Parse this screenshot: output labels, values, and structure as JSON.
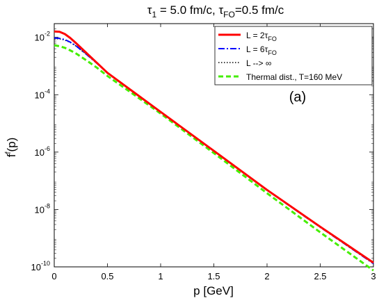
{
  "chart_data": {
    "type": "line",
    "title": {
      "main": "τ",
      "sub1": "1",
      "mid": " = 5.0 fm/c, τ",
      "sub2": "FO",
      "end": "=0.5 fm/c"
    },
    "xlabel": "p [GeV]",
    "ylabel": {
      "main": "f",
      "sup": "f",
      "end": "(p)"
    },
    "xlim": [
      0,
      3
    ],
    "ylim": [
      1e-10,
      0.03
    ],
    "yscale": "log",
    "xticks": [
      {
        "value": 0,
        "label": "0"
      },
      {
        "value": 0.5,
        "label": "0.5"
      },
      {
        "value": 1,
        "label": "1"
      },
      {
        "value": 1.5,
        "label": "1.5"
      },
      {
        "value": 2,
        "label": "2"
      },
      {
        "value": 2.5,
        "label": "2.5"
      },
      {
        "value": 3,
        "label": "3"
      }
    ],
    "yticks": [
      {
        "value": 0.01,
        "base": "10",
        "exp": "-2"
      },
      {
        "value": 0.0001,
        "base": "10",
        "exp": "-4"
      },
      {
        "value": 1e-06,
        "base": "10",
        "exp": "-6"
      },
      {
        "value": 1e-08,
        "base": "10",
        "exp": "-8"
      },
      {
        "value": 1e-10,
        "base": "10",
        "exp": "-10"
      }
    ],
    "panel_label": "(a)",
    "legend_position": "top-right",
    "series": [
      {
        "legend": {
          "text": "L = 2τ",
          "sub": "FO"
        },
        "color": "#ff0000",
        "dash": "solid",
        "x": [
          0,
          0.05,
          0.1,
          0.15,
          0.2,
          0.3,
          0.4,
          0.5,
          0.75,
          1.0,
          1.5,
          2.0,
          2.5,
          3.0
        ],
        "y": [
          0.016,
          0.0155,
          0.013,
          0.0095,
          0.0065,
          0.0029,
          0.0013,
          0.00058,
          0.00012,
          2.5e-05,
          1.1e-06,
          4.8e-08,
          2.5e-09,
          1.4e-10
        ]
      },
      {
        "legend": {
          "text": "L = 6τ",
          "sub": "FO"
        },
        "color": "#0000ff",
        "dash": "dashdot",
        "x": [
          0,
          0.05,
          0.1,
          0.15,
          0.2,
          0.3,
          0.4,
          0.5,
          0.75,
          1.0,
          1.5,
          2.0,
          2.5,
          3.0
        ],
        "y": [
          0.0095,
          0.0092,
          0.0083,
          0.0068,
          0.0052,
          0.0026,
          0.00125,
          0.00057,
          0.00012,
          2.5e-05,
          1.1e-06,
          4.7e-08,
          2.4e-09,
          1.3e-10
        ]
      },
      {
        "legend": {
          "text": "L --> ∞",
          "sub": ""
        },
        "color": "#000000",
        "dash": "dotted",
        "x": [
          0,
          0.05,
          0.1,
          0.15,
          0.2,
          0.3,
          0.4,
          0.5,
          0.75,
          1.0,
          1.5,
          2.0,
          2.5,
          3.0
        ],
        "y": [
          0.009,
          0.0088,
          0.008,
          0.0066,
          0.0051,
          0.0026,
          0.00124,
          0.00057,
          0.00012,
          2.5e-05,
          1.1e-06,
          4.7e-08,
          2.4e-09,
          1.3e-10
        ]
      },
      {
        "legend": {
          "text": "Thermal dist., T=160 MeV",
          "sub": ""
        },
        "color": "#44ee00",
        "dash": "dashed",
        "x": [
          0,
          0.05,
          0.1,
          0.15,
          0.2,
          0.3,
          0.4,
          0.5,
          0.75,
          1.0,
          1.5,
          2.0,
          2.5,
          3.0
        ],
        "y": [
          0.0053,
          0.0049,
          0.0043,
          0.0035,
          0.0028,
          0.0016,
          0.00088,
          0.00045,
          0.0001,
          2.2e-05,
          9.2e-07,
          3.7e-08,
          1.6e-09,
          7.5e-11
        ]
      }
    ]
  }
}
